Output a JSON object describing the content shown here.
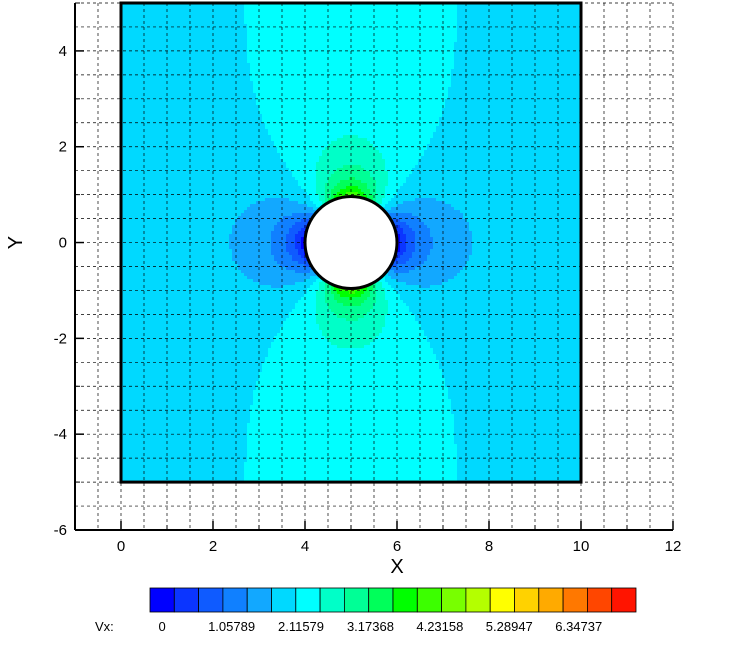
{
  "chart_data": {
    "type": "heatmap",
    "title": "",
    "xlabel": "X",
    "ylabel": "Y",
    "xlim": [
      -1,
      12
    ],
    "ylim": [
      -6,
      5
    ],
    "x_ticks": [
      "0",
      "2",
      "4",
      "6",
      "8",
      "10",
      "12"
    ],
    "y_ticks": [
      "-6",
      "-4",
      "-2",
      "0",
      "2",
      "4"
    ],
    "grid": "dashed, on",
    "domain": {
      "x": [
        0,
        10
      ],
      "y": [
        -5,
        5
      ]
    },
    "hole": {
      "cx": 5,
      "cy": 0,
      "r": 1
    },
    "variable": "Vx",
    "legend_title": "Vx:",
    "levels_min": 0,
    "levels_max": 7.405,
    "level_count": 20,
    "legend_ticks": [
      {
        "value": 0,
        "label": "0"
      },
      {
        "value": 1.05789,
        "label": "1.05789"
      },
      {
        "value": 2.11579,
        "label": "2.11579"
      },
      {
        "value": 3.17368,
        "label": "3.17368"
      },
      {
        "value": 4.23158,
        "label": "4.23158"
      },
      {
        "value": 5.28947,
        "label": "5.28947"
      },
      {
        "value": 6.34737,
        "label": "6.34737"
      }
    ],
    "colors": [
      "#0000ff",
      "#0b35ff",
      "#0f5bff",
      "#1080ff",
      "#12a8ff",
      "#00d9ff",
      "#00ffff",
      "#00ffc8",
      "#00ff96",
      "#00ff5a",
      "#00ff00",
      "#3cff00",
      "#78ff00",
      "#b4ff00",
      "#ffff00",
      "#ffd200",
      "#ffaa00",
      "#ff7800",
      "#ff4600",
      "#ff1400"
    ],
    "field_description": "Flow past a cylinder (potential flow Vx, mirrored walls): low values around the hole, maximum at top and bottom walls near x=5"
  }
}
